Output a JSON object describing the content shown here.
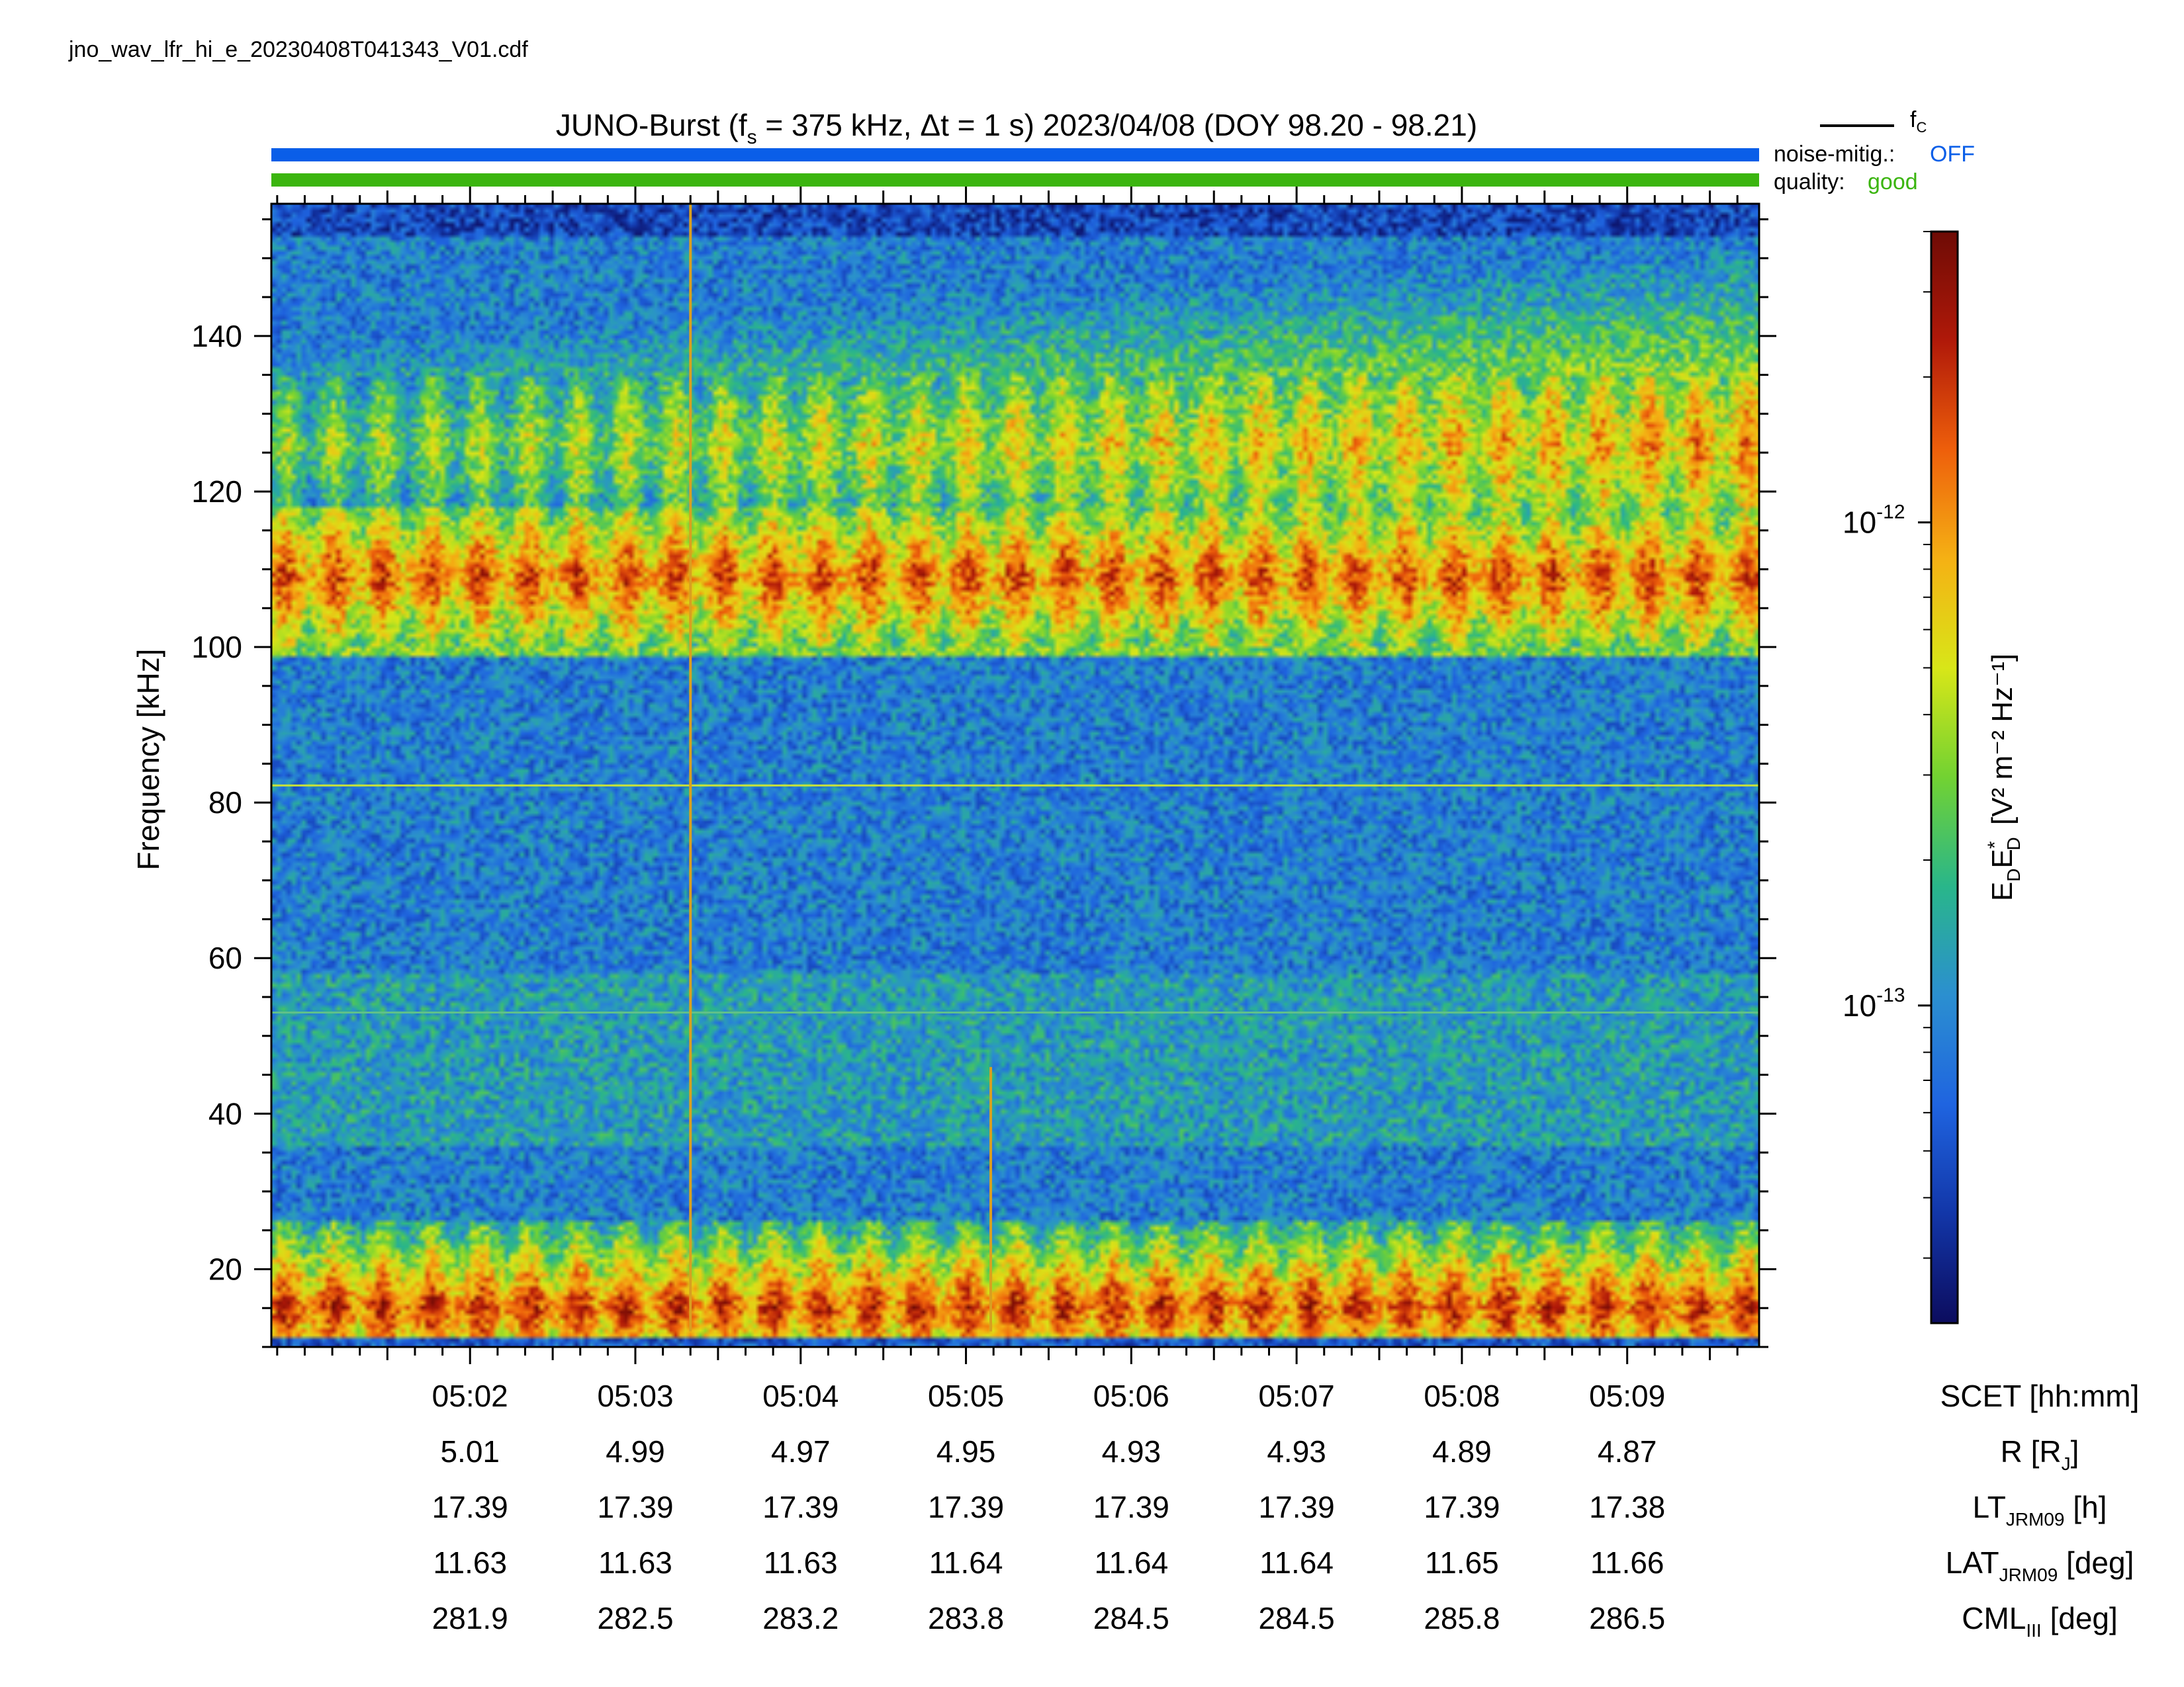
{
  "file_name": "jno_wav_lfr_hi_e_20230408T041343_V01.cdf",
  "title": {
    "instrument": "JUNO-Burst",
    "fs_symbol": "f",
    "fs_sub": "s",
    "fs_value": "= 375 kHz,",
    "dt_text": "Δt = 1 s)",
    "date_range": "2023/04/08 (DOY 98.20 - 98.21)"
  },
  "legend": {
    "fc_label": "f",
    "fc_sub": "C",
    "noise_label": "noise-mitig.:",
    "noise_value": "OFF",
    "quality_label": "quality:",
    "quality_value": "good"
  },
  "colors": {
    "noise_bar": "#0a5ee8",
    "quality_bar": "#3bb50f",
    "noise_text": "#0a5ee8",
    "quality_text": "#3bb50f"
  },
  "chart_data": {
    "type": "heatmap",
    "ylabel": "Frequency [kHz]",
    "ylim": [
      10,
      157
    ],
    "yticks": [
      20,
      40,
      60,
      80,
      100,
      120,
      140
    ],
    "y_minor_step": 5,
    "xlim_hours": [
      5.0133,
      5.1633
    ],
    "xticks": [
      "05:02",
      "05:03",
      "05:04",
      "05:05",
      "05:06",
      "05:07",
      "05:08",
      "05:09"
    ],
    "colorbar": {
      "label_E": "E",
      "label_D": "D",
      "label_star": "*",
      "unit": "[V² m⁻² Hz⁻¹]",
      "scale": "log",
      "ticks": [
        {
          "base": "10",
          "exp": "-12",
          "value": 1e-12
        },
        {
          "base": "10",
          "exp": "-13",
          "value": 1e-13
        }
      ],
      "range": [
        2.2e-14,
        4e-12
      ],
      "colormap": [
        "#0c0c5e",
        "#1236a8",
        "#1f64e0",
        "#2b8fd0",
        "#29b68a",
        "#72d232",
        "#d8e618",
        "#f5b114",
        "#ee5f0b",
        "#b01909",
        "#6e0b05"
      ]
    },
    "emission_bands_khz": [
      {
        "low": 99,
        "high": 118,
        "peak": 109,
        "level": 0.78
      },
      {
        "low": 118,
        "high": 153,
        "peak": 126,
        "level": 0.7
      },
      {
        "low": 11,
        "high": 26,
        "peak": 15,
        "level": 0.82
      }
    ],
    "narrowband_lines_khz": [
      82.2,
      53
    ],
    "spikes": [
      {
        "time": "05:03:20",
        "f_from": 12,
        "f_to": 157
      },
      {
        "time": "05:05:09",
        "f_from": 12,
        "f_to": 46
      }
    ],
    "ephemeris": {
      "rows": [
        {
          "name": "SCET",
          "label_main": "SCET [hh:mm]",
          "label_sub": "",
          "label_end": "",
          "values": [
            "05:02",
            "05:03",
            "05:04",
            "05:05",
            "05:06",
            "05:07",
            "05:08",
            "05:09"
          ]
        },
        {
          "name": "R",
          "label_main": "R [R",
          "label_sub": "J",
          "label_end": "]",
          "values": [
            "5.01",
            "4.99",
            "4.97",
            "4.95",
            "4.93",
            "4.93",
            "4.89",
            "4.87"
          ]
        },
        {
          "name": "LT",
          "label_main": "LT",
          "label_sub": "JRM09",
          "label_end": " [h]",
          "values": [
            "17.39",
            "17.39",
            "17.39",
            "17.39",
            "17.39",
            "17.39",
            "17.39",
            "17.38"
          ]
        },
        {
          "name": "LAT",
          "label_main": "LAT",
          "label_sub": "JRM09",
          "label_end": " [deg]",
          "values": [
            "11.63",
            "11.63",
            "11.63",
            "11.64",
            "11.64",
            "11.64",
            "11.65",
            "11.66"
          ]
        },
        {
          "name": "CML",
          "label_main": "CML",
          "label_sub": "III",
          "label_end": " [deg]",
          "values": [
            "281.9",
            "282.5",
            "283.2",
            "283.8",
            "284.5",
            "284.5",
            "285.8",
            "286.5"
          ]
        }
      ]
    }
  }
}
